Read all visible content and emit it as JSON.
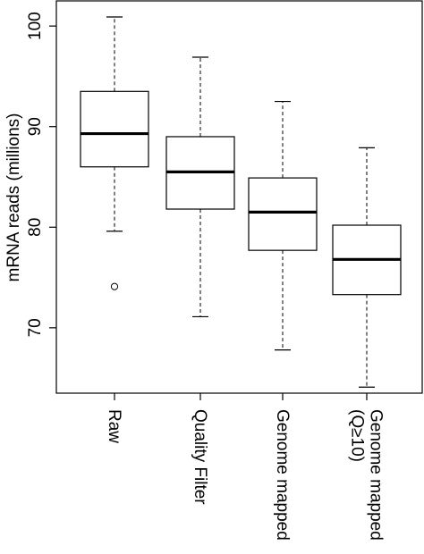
{
  "chart_data": {
    "type": "box",
    "title": "",
    "xlabel": "",
    "ylabel": "mRNA reads (millions)",
    "ylim": [
      63.5,
      102.5
    ],
    "yticks": [
      70,
      80,
      90,
      100
    ],
    "grid": false,
    "legend": "none",
    "categories": [
      [
        "Raw"
      ],
      [
        "Quality Filter"
      ],
      [
        "Genome mapped"
      ],
      [
        "Genome mapped",
        "(Q≥10)"
      ]
    ],
    "boxes": [
      {
        "whisker_low": 79.6,
        "q1": 86.0,
        "median": 89.3,
        "q3": 93.5,
        "whisker_high": 100.9,
        "outliers": [
          74.1
        ]
      },
      {
        "whisker_low": 71.1,
        "q1": 81.8,
        "median": 85.5,
        "q3": 89.0,
        "whisker_high": 96.9,
        "outliers": []
      },
      {
        "whisker_low": 67.8,
        "q1": 77.7,
        "median": 81.5,
        "q3": 84.9,
        "whisker_high": 92.5,
        "outliers": []
      },
      {
        "whisker_low": 64.1,
        "q1": 73.3,
        "median": 76.8,
        "q3": 80.2,
        "whisker_high": 87.9,
        "outliers": []
      }
    ]
  }
}
